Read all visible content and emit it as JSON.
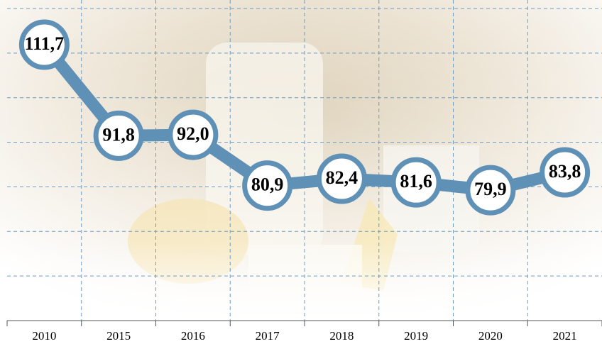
{
  "chart_data": {
    "type": "line",
    "categories": [
      "2010",
      "2015",
      "2016",
      "2017",
      "2018",
      "2019",
      "2020",
      "2021"
    ],
    "values": [
      111.7,
      91.8,
      92.0,
      80.9,
      82.4,
      81.6,
      79.9,
      83.8
    ],
    "value_labels": [
      "111,7",
      "91,8",
      "92,0",
      "80,9",
      "82,4",
      "81,6",
      "79,9",
      "83,8"
    ],
    "color": "#5f90b6",
    "ylim": [
      51.4,
      119.6
    ],
    "grid": true
  }
}
